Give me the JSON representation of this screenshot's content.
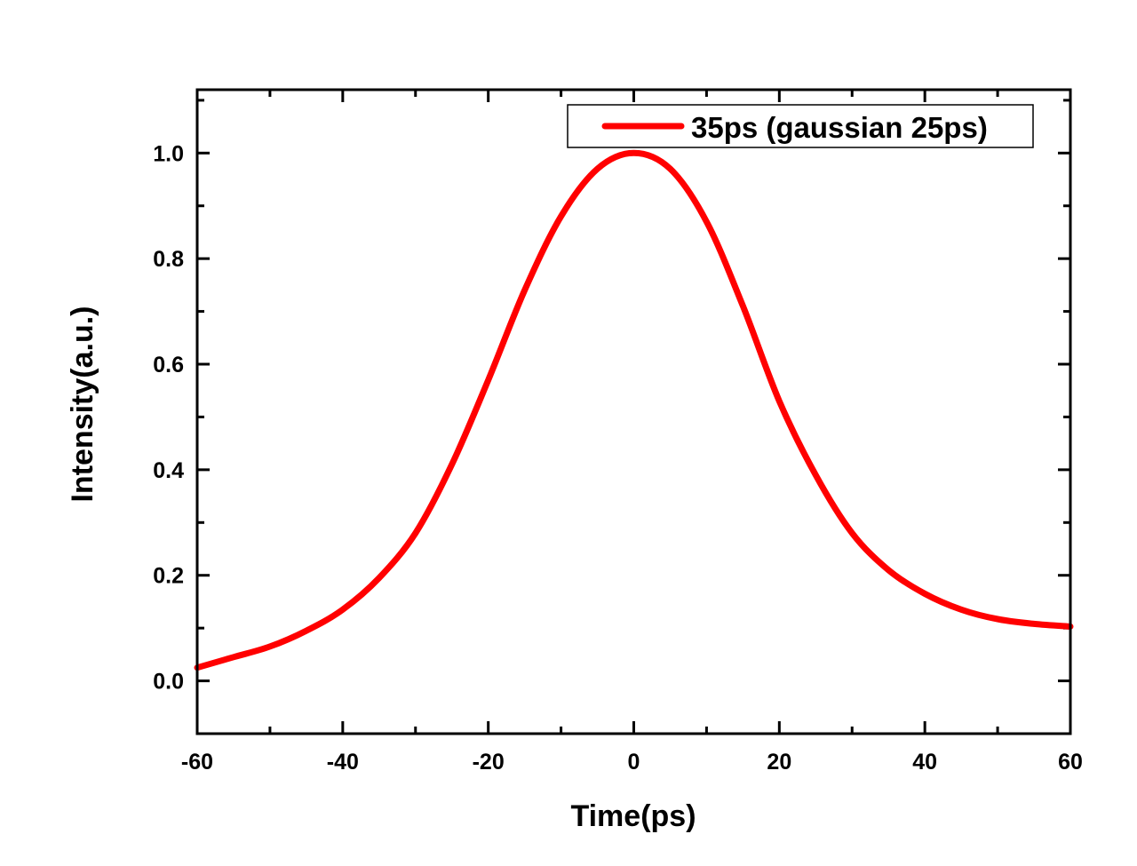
{
  "chart_data": {
    "type": "line",
    "title": "",
    "xlabel": "Time(ps)",
    "ylabel": "Intensity(a.u.)",
    "xlim": [
      -60,
      60
    ],
    "ylim": [
      -0.1,
      1.12
    ],
    "x_ticks": [
      -60,
      -40,
      -20,
      0,
      20,
      40,
      60
    ],
    "x_tick_labels": [
      "-60",
      "-40",
      "-20",
      "0",
      "20",
      "40",
      "60"
    ],
    "y_ticks": [
      0.0,
      0.2,
      0.4,
      0.6,
      0.8,
      1.0
    ],
    "y_tick_labels": [
      "0.0",
      "0.2",
      "0.4",
      "0.6",
      "0.8",
      "1.0"
    ],
    "grid": false,
    "legend_position": "top-right",
    "series": [
      {
        "name": "35ps (gaussian 25ps)",
        "color": "#ff0000",
        "x": [
          -60,
          -55,
          -50,
          -45,
          -40,
          -35,
          -30,
          -25,
          -20,
          -15,
          -10,
          -5,
          0,
          5,
          10,
          15,
          20,
          25,
          30,
          35,
          40,
          45,
          50,
          55,
          60
        ],
        "y": [
          0.025,
          0.045,
          0.065,
          0.095,
          0.135,
          0.195,
          0.28,
          0.41,
          0.57,
          0.74,
          0.88,
          0.97,
          1.0,
          0.97,
          0.87,
          0.71,
          0.53,
          0.39,
          0.28,
          0.21,
          0.165,
          0.135,
          0.117,
          0.108,
          0.103
        ]
      }
    ]
  }
}
